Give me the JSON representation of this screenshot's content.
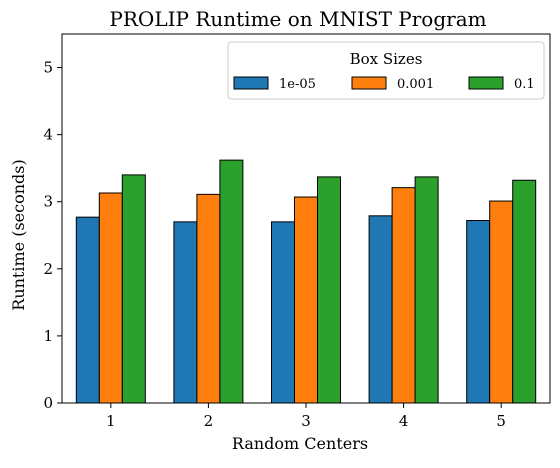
{
  "chart_data": {
    "type": "bar",
    "title": "PROLIP Runtime on MNIST Program",
    "xlabel": "Random Centers",
    "ylabel": "Runtime (seconds)",
    "categories": [
      "1",
      "2",
      "3",
      "4",
      "5"
    ],
    "ylim": [
      0,
      5.5
    ],
    "yticks": [
      "0",
      "1",
      "2",
      "3",
      "4",
      "5"
    ],
    "legend": {
      "title": "Box Sizes",
      "placement": "upper-right",
      "columns": 3
    },
    "series": [
      {
        "name": "1e-05",
        "color": "#1f77b4",
        "values": [
          2.77,
          2.7,
          2.7,
          2.79,
          2.72
        ]
      },
      {
        "name": "0.001",
        "color": "#ff7f0e",
        "values": [
          3.13,
          3.11,
          3.07,
          3.21,
          3.01
        ]
      },
      {
        "name": "0.1",
        "color": "#2ca02c",
        "values": [
          3.4,
          3.62,
          3.37,
          3.37,
          3.32
        ]
      }
    ]
  }
}
